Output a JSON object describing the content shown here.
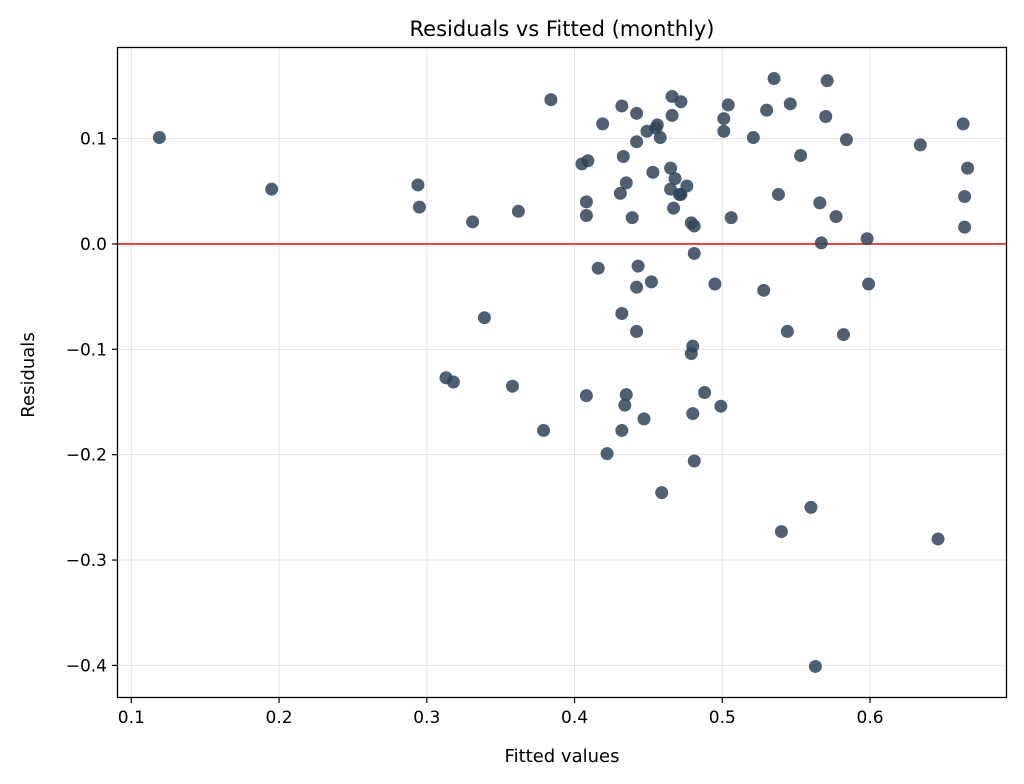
{
  "chart_data": {
    "type": "scatter",
    "title": "Residuals vs Fitted (monthly)",
    "xlabel": "Fitted values",
    "ylabel": "Residuals",
    "xlim": [
      0.091,
      0.692
    ],
    "ylim": [
      -0.43,
      0.186
    ],
    "xticks": [
      0.1,
      0.2,
      0.3,
      0.4,
      0.5,
      0.6
    ],
    "xtick_labels": [
      "0.1",
      "0.2",
      "0.3",
      "0.4",
      "0.5",
      "0.6"
    ],
    "yticks": [
      -0.4,
      -0.3,
      -0.2,
      -0.1,
      0.0,
      0.1
    ],
    "ytick_labels": [
      "−0.4",
      "−0.3",
      "−0.2",
      "−0.1",
      "0.0",
      "0.1"
    ],
    "grid": true,
    "reference_line": {
      "y": 0.0,
      "color": "#e01e1e"
    },
    "point_color": "#2f4458",
    "series": [
      {
        "x": [
          0.119,
          0.195,
          0.294,
          0.295,
          0.313,
          0.318,
          0.331,
          0.339,
          0.358,
          0.362,
          0.379,
          0.384,
          0.405,
          0.408,
          0.408,
          0.408,
          0.409,
          0.416,
          0.419,
          0.422,
          0.431,
          0.432,
          0.432,
          0.432,
          0.433,
          0.434,
          0.435,
          0.435,
          0.439,
          0.442,
          0.442,
          0.442,
          0.442,
          0.443,
          0.447,
          0.449,
          0.452,
          0.453,
          0.455,
          0.456,
          0.458,
          0.459,
          0.465,
          0.465,
          0.466,
          0.466,
          0.467,
          0.468,
          0.471,
          0.472,
          0.472,
          0.476,
          0.479,
          0.479,
          0.48,
          0.48,
          0.481,
          0.481,
          0.481,
          0.488,
          0.495,
          0.499,
          0.501,
          0.501,
          0.504,
          0.506,
          0.521,
          0.528,
          0.53,
          0.535,
          0.538,
          0.54,
          0.544,
          0.546,
          0.553,
          0.56,
          0.563,
          0.566,
          0.567,
          0.57,
          0.571,
          0.577,
          0.582,
          0.584,
          0.598,
          0.599,
          0.634,
          0.646,
          0.663,
          0.664,
          0.664,
          0.666
        ],
        "y": [
          0.101,
          0.052,
          0.056,
          0.035,
          -0.127,
          -0.131,
          0.021,
          -0.07,
          -0.135,
          0.031,
          -0.177,
          0.137,
          0.076,
          0.027,
          0.04,
          -0.144,
          0.079,
          -0.023,
          0.114,
          -0.199,
          0.048,
          -0.066,
          -0.177,
          0.131,
          0.083,
          -0.153,
          0.058,
          -0.143,
          0.025,
          -0.041,
          -0.083,
          0.124,
          0.097,
          -0.021,
          -0.166,
          0.107,
          -0.036,
          0.068,
          0.11,
          0.113,
          0.101,
          -0.236,
          0.072,
          0.052,
          0.122,
          0.14,
          0.034,
          0.062,
          0.047,
          0.135,
          0.047,
          0.055,
          0.02,
          -0.104,
          -0.161,
          -0.097,
          0.017,
          -0.009,
          -0.206,
          -0.141,
          -0.038,
          -0.154,
          0.119,
          0.107,
          0.132,
          0.025,
          0.101,
          -0.044,
          0.127,
          0.157,
          0.047,
          -0.273,
          -0.083,
          0.133,
          0.084,
          -0.25,
          -0.401,
          0.039,
          0.001,
          0.121,
          0.155,
          0.026,
          -0.086,
          0.099,
          0.005,
          -0.038,
          0.094,
          -0.28,
          0.114,
          0.045,
          0.016,
          0.072
        ]
      }
    ]
  }
}
